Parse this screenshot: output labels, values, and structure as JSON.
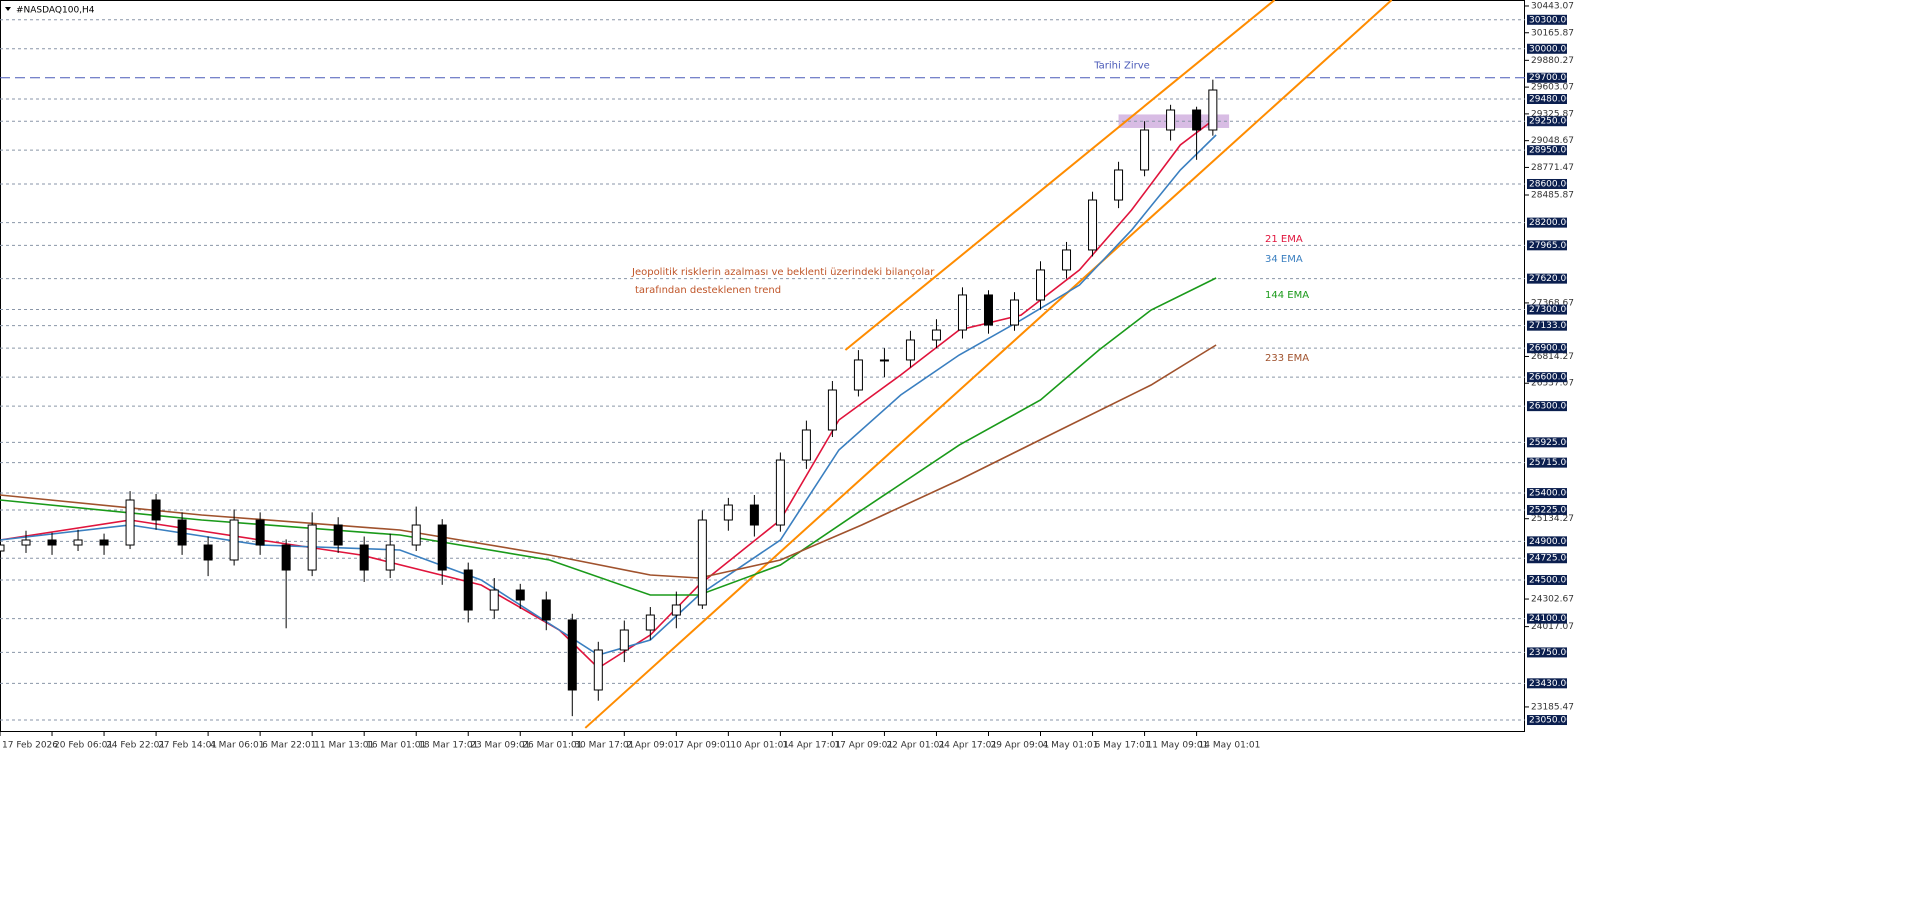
{
  "chart_data": {
    "type": "candlestick",
    "title": "#NASDAQ100,H4",
    "xlim": [
      0,
      469
    ],
    "ylim": [
      22926,
      30505
    ],
    "xticks": [
      {
        "value": 0,
        "label": "17 Feb 2026"
      },
      {
        "value": 16,
        "label": "20 Feb 06:01"
      },
      {
        "value": 32,
        "label": "24 Feb 22:01"
      },
      {
        "value": 48,
        "label": "27 Feb 14:01"
      },
      {
        "value": 64,
        "label": "4 Mar 06:01"
      },
      {
        "value": 80,
        "label": "6 Mar 22:01"
      },
      {
        "value": 96,
        "label": "11 Mar 13:01"
      },
      {
        "value": 112,
        "label": "16 Mar 01:01"
      },
      {
        "value": 128,
        "label": "18 Mar 17:01"
      },
      {
        "value": 144,
        "label": "23 Mar 09:01"
      },
      {
        "value": 160,
        "label": "26 Mar 01:01"
      },
      {
        "value": 176,
        "label": "30 Mar 17:01"
      },
      {
        "value": 192,
        "label": "2 Apr 09:01"
      },
      {
        "value": 208,
        "label": "7 Apr 09:01"
      },
      {
        "value": 224,
        "label": "10 Apr 01:01"
      },
      {
        "value": 240,
        "label": "14 Apr 17:01"
      },
      {
        "value": 256,
        "label": "17 Apr 09:01"
      },
      {
        "value": 272,
        "label": "22 Apr 01:01"
      },
      {
        "value": 288,
        "label": "24 Apr 17:01"
      },
      {
        "value": 304,
        "label": "29 Apr 09:01"
      },
      {
        "value": 320,
        "label": "4 May 01:01"
      },
      {
        "value": 336,
        "label": "6 May 17:01"
      },
      {
        "value": 352,
        "label": "11 May 09:01"
      },
      {
        "value": 368,
        "label": "14 May 01:01"
      }
    ],
    "yticks": [
      30443.07,
      30165.87,
      29880.27,
      29603.07,
      29325.87,
      29048.67,
      28771.47,
      28485.87,
      27368.67,
      26814.27,
      26537.07,
      25134.27,
      24302.67,
      24017.07,
      23185.47
    ],
    "levels": [
      {
        "value": 30300,
        "label": "30300.00"
      },
      {
        "value": 30000,
        "label": "30000.00"
      },
      {
        "value": 29480,
        "label": "29480.00"
      },
      {
        "value": 29250,
        "label": "29250.00"
      },
      {
        "value": 28950,
        "label": "28950.00"
      },
      {
        "value": 28600,
        "label": "28600.00"
      },
      {
        "value": 28200,
        "label": "28200.00"
      },
      {
        "value": 27965,
        "label": "27965.00"
      },
      {
        "value": 27620,
        "label": "27620.00"
      },
      {
        "value": 27300,
        "label": "27300.00"
      },
      {
        "value": 27133,
        "label": "27133.00"
      },
      {
        "value": 26900,
        "label": "26900.00"
      },
      {
        "value": 26600,
        "label": "26600.00"
      },
      {
        "value": 26300,
        "label": "26300.00"
      },
      {
        "value": 25925,
        "label": "25925.00"
      },
      {
        "value": 25715,
        "label": "25715.00"
      },
      {
        "value": 25400,
        "label": "25400.00"
      },
      {
        "value": 25225,
        "label": "25225.00"
      },
      {
        "value": 24900,
        "label": "24900.00"
      },
      {
        "value": 24725,
        "label": "24725.00"
      },
      {
        "value": 24500,
        "label": "24500.00"
      },
      {
        "value": 24100,
        "label": "24100.00"
      },
      {
        "value": 23750,
        "label": "23750.00"
      },
      {
        "value": 23430,
        "label": "23430.00"
      },
      {
        "value": 23050,
        "label": "23050.00"
      }
    ],
    "level_color": "#8a96a8",
    "peak_line": {
      "value": 29700,
      "label": "29700.00",
      "text": "Tarihi Zirve",
      "color": "#4a5ab8"
    },
    "x": [
      0,
      8,
      16,
      24,
      32,
      40,
      48,
      56,
      64,
      72,
      80,
      88,
      96,
      104,
      112,
      120,
      128,
      136,
      144,
      152,
      160,
      168,
      176,
      184,
      192,
      200,
      208,
      216,
      224,
      232,
      240,
      248,
      256,
      264,
      272,
      280,
      288,
      296,
      304,
      312,
      320,
      328,
      336,
      344,
      352,
      360,
      368,
      373
    ],
    "candles": [
      [
        24800,
        24960,
        24700,
        24862
      ],
      [
        24862,
        25010,
        24780,
        24914
      ],
      [
        24914,
        24990,
        24760,
        24862
      ],
      [
        24862,
        25020,
        24800,
        24914
      ],
      [
        24914,
        24980,
        24760,
        24862
      ],
      [
        24862,
        25420,
        24820,
        25328
      ],
      [
        25328,
        25390,
        25020,
        25121
      ],
      [
        25121,
        25200,
        24760,
        24862
      ],
      [
        24862,
        24950,
        24540,
        24707
      ],
      [
        24707,
        25230,
        24650,
        25121
      ],
      [
        25121,
        25200,
        24760,
        24862
      ],
      [
        24862,
        24920,
        24000,
        24603
      ],
      [
        24603,
        25200,
        24540,
        25069
      ],
      [
        25069,
        25150,
        24780,
        24862
      ],
      [
        24862,
        24950,
        24480,
        24603
      ],
      [
        24603,
        24980,
        24520,
        24862
      ],
      [
        24862,
        25260,
        24800,
        25069
      ],
      [
        25069,
        25130,
        24450,
        24603
      ],
      [
        24603,
        24680,
        24060,
        24189
      ],
      [
        24189,
        24520,
        24100,
        24396
      ],
      [
        24396,
        24460,
        24200,
        24293
      ],
      [
        24293,
        24380,
        23980,
        24086
      ],
      [
        24086,
        24150,
        23090,
        23361
      ],
      [
        23361,
        23860,
        23250,
        23775
      ],
      [
        23775,
        24080,
        23650,
        23982
      ],
      [
        23982,
        24220,
        23880,
        24137
      ],
      [
        24137,
        24380,
        24000,
        24241
      ],
      [
        24241,
        25220,
        24200,
        25121
      ],
      [
        25121,
        25350,
        25010,
        25276
      ],
      [
        25276,
        25380,
        24950,
        25069
      ],
      [
        25069,
        25820,
        25000,
        25742
      ],
      [
        25742,
        26150,
        25650,
        26053
      ],
      [
        26053,
        26560,
        25980,
        26467
      ],
      [
        26467,
        26880,
        26400,
        26778
      ],
      [
        26778,
        26900,
        26600,
        26778
      ],
      [
        26778,
        27080,
        26700,
        26985
      ],
      [
        26985,
        27200,
        26900,
        27088
      ],
      [
        27088,
        27530,
        27000,
        27451
      ],
      [
        27451,
        27500,
        27050,
        27140
      ],
      [
        27140,
        27480,
        27080,
        27399
      ],
      [
        27399,
        27800,
        27300,
        27710
      ],
      [
        27710,
        28000,
        27620,
        27917
      ],
      [
        27917,
        28520,
        27850,
        28434
      ],
      [
        28434,
        28830,
        28350,
        28745
      ],
      [
        28745,
        29250,
        28680,
        29159
      ],
      [
        29159,
        29420,
        29050,
        29366
      ],
      [
        29366,
        29400,
        28850,
        29159
      ],
      [
        29159,
        29680,
        29100,
        29573
      ]
    ],
    "series": [
      {
        "name": "21 EMA",
        "color": "#e0143c",
        "x": [
          0,
          40,
          80,
          111,
          148,
          172,
          184,
          200,
          215,
          240,
          258,
          277,
          295,
          314,
          332,
          348,
          363,
          374
        ],
        "values": [
          24914,
          25121,
          24914,
          24759,
          24448,
          23982,
          23589,
          23930,
          24448,
          25121,
          26156,
          26622,
          27088,
          27243,
          27710,
          28331,
          29004,
          29284
        ]
      },
      {
        "name": "34 EMA",
        "color": "#3a7fc0",
        "x": [
          0,
          40,
          80,
          123,
          148,
          172,
          184,
          200,
          215,
          240,
          258,
          277,
          295,
          314,
          332,
          348,
          363,
          374
        ],
        "values": [
          24914,
          25069,
          24862,
          24810,
          24500,
          23982,
          23723,
          23879,
          24344,
          24914,
          25846,
          26415,
          26829,
          27191,
          27554,
          28123,
          28745,
          29107
        ]
      },
      {
        "name": "144 EMA",
        "color": "#1a9a1a",
        "x": [
          0,
          62,
          123,
          169,
          200,
          215,
          240,
          265,
          295,
          320,
          338,
          354,
          374
        ],
        "values": [
          25328,
          25121,
          24966,
          24707,
          24344,
          24344,
          24655,
          25224,
          25897,
          26363,
          26881,
          27295,
          27627
        ]
      },
      {
        "name": "233 EMA",
        "color": "#a0522d",
        "x": [
          0,
          62,
          123,
          169,
          200,
          215,
          240,
          265,
          295,
          326,
          354,
          374
        ],
        "values": [
          25380,
          25173,
          25017,
          24759,
          24552,
          24521,
          24707,
          25069,
          25535,
          26053,
          26519,
          26933
        ]
      }
    ],
    "channel_color": "#ff8c00",
    "channel": [
      {
        "x": [
          260,
          392
        ],
        "y": [
          26881,
          30505
        ]
      },
      {
        "x": [
          180,
          428
        ],
        "y": [
          22968,
          30505
        ]
      }
    ],
    "zone": {
      "x": [
        344,
        378
      ],
      "y": [
        29180,
        29320
      ],
      "color": "#c8a0d8"
    },
    "annotation": [
      "Jeopolitik risklerin azalması ve beklenti üzerindeki bilançolar",
      "tarafından desteklenen trend"
    ],
    "annotation_color": "#c0562a"
  }
}
